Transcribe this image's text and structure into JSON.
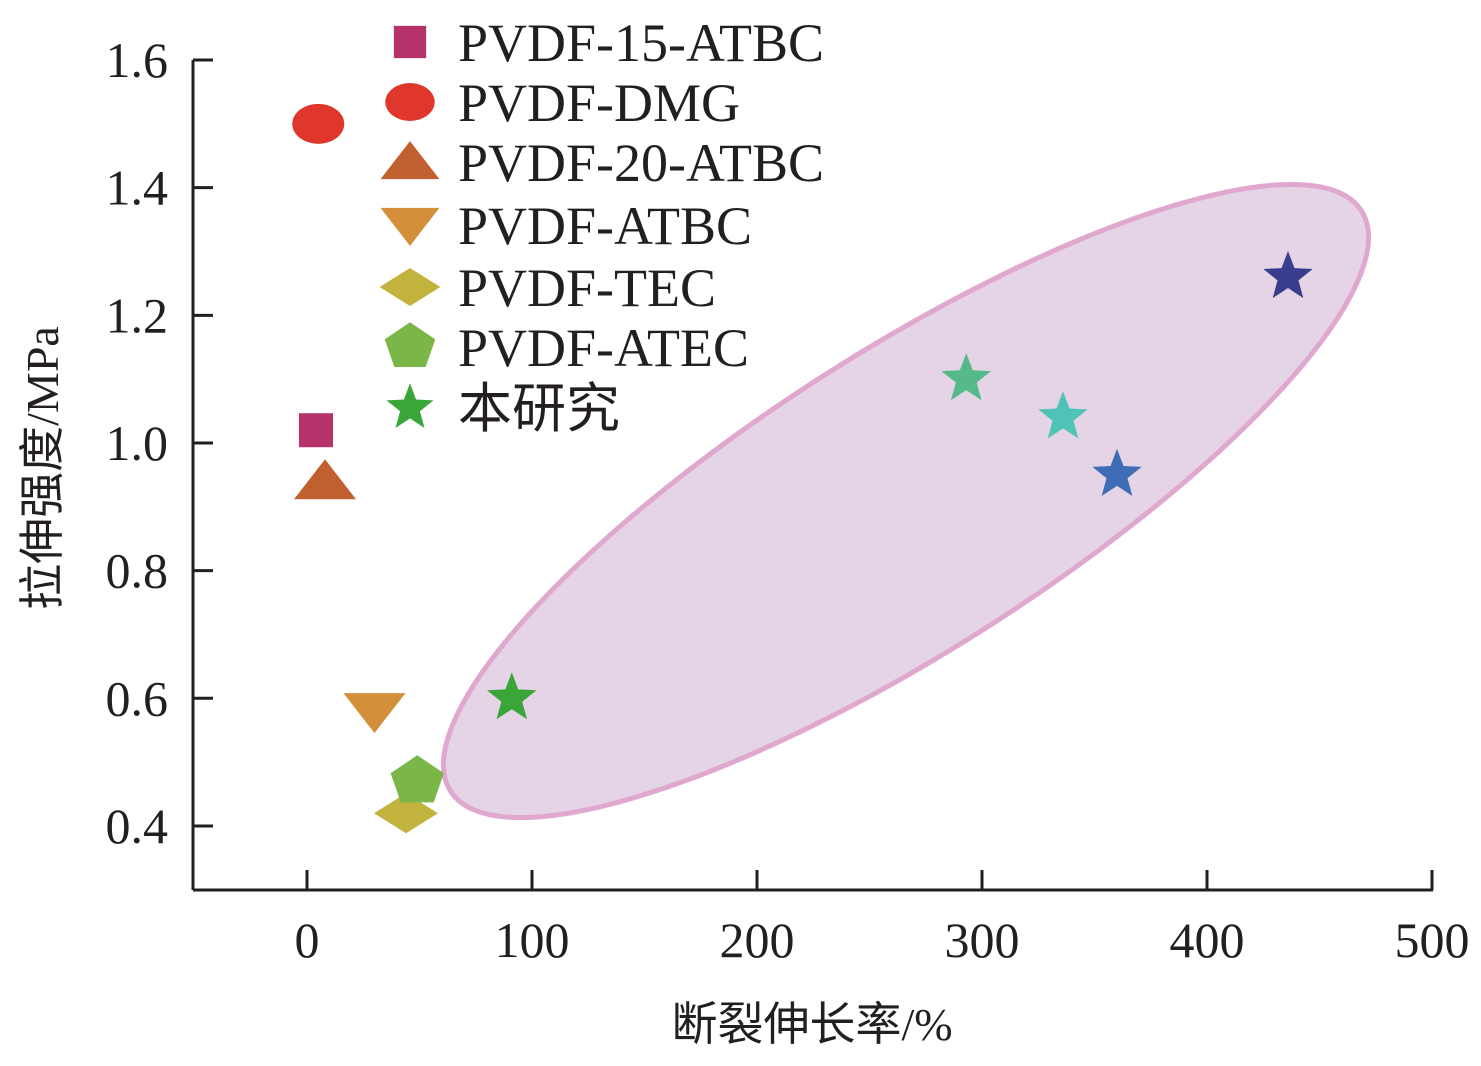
{
  "chart_data": {
    "type": "scatter",
    "title": "",
    "xlabel": "断裂伸长率/%",
    "ylabel": "拉伸强度/MPa",
    "xlim": [
      -50,
      500
    ],
    "ylim": [
      0.3,
      1.65
    ],
    "xticks": [
      "0",
      "100",
      "200",
      "300",
      "400",
      "500"
    ],
    "xtick_values": [
      0,
      100,
      200,
      300,
      400,
      500
    ],
    "yticks": [
      "0.4",
      "0.6",
      "0.8",
      "1.0",
      "1.2",
      "1.4",
      "1.6"
    ],
    "ytick_values": [
      0.4,
      0.6,
      0.8,
      1.0,
      1.2,
      1.4,
      1.6
    ],
    "grid": false,
    "legend_position": "top-left",
    "series": [
      {
        "name": "PVDF-15-ATBC",
        "marker": "square",
        "color": "#b5326a",
        "points": [
          [
            4,
            1.02
          ]
        ]
      },
      {
        "name": "PVDF-DMG",
        "marker": "ellipse",
        "color": "#e0372d",
        "points": [
          [
            5,
            1.5
          ]
        ]
      },
      {
        "name": "PVDF-20-ATBC",
        "marker": "triangle-up",
        "color": "#c0602e",
        "points": [
          [
            8,
            0.94
          ]
        ]
      },
      {
        "name": "PVDF-ATBC",
        "marker": "triangle-down",
        "color": "#d48f3a",
        "points": [
          [
            30,
            0.58
          ]
        ]
      },
      {
        "name": "PVDF-TEC",
        "marker": "diamond",
        "color": "#c2b33e",
        "points": [
          [
            44,
            0.42
          ]
        ]
      },
      {
        "name": "PVDF-ATEC",
        "marker": "pentagon",
        "color": "#7ab648",
        "points": [
          [
            49,
            0.47
          ]
        ]
      },
      {
        "name": "本研究",
        "marker": "star",
        "color": "#3aa63a",
        "points": [
          [
            91,
            0.6
          ],
          [
            293,
            1.1
          ],
          [
            336,
            1.04
          ],
          [
            360,
            0.95
          ],
          [
            436,
            1.26
          ]
        ],
        "point_colors": [
          "#3aa63a",
          "#55b98a",
          "#4fc4b6",
          "#3f6db5",
          "#3a3d8c"
        ]
      }
    ],
    "annotation": {
      "type": "ellipse",
      "fill": "#e4d4e6",
      "stroke": "#e0a8cf"
    }
  }
}
